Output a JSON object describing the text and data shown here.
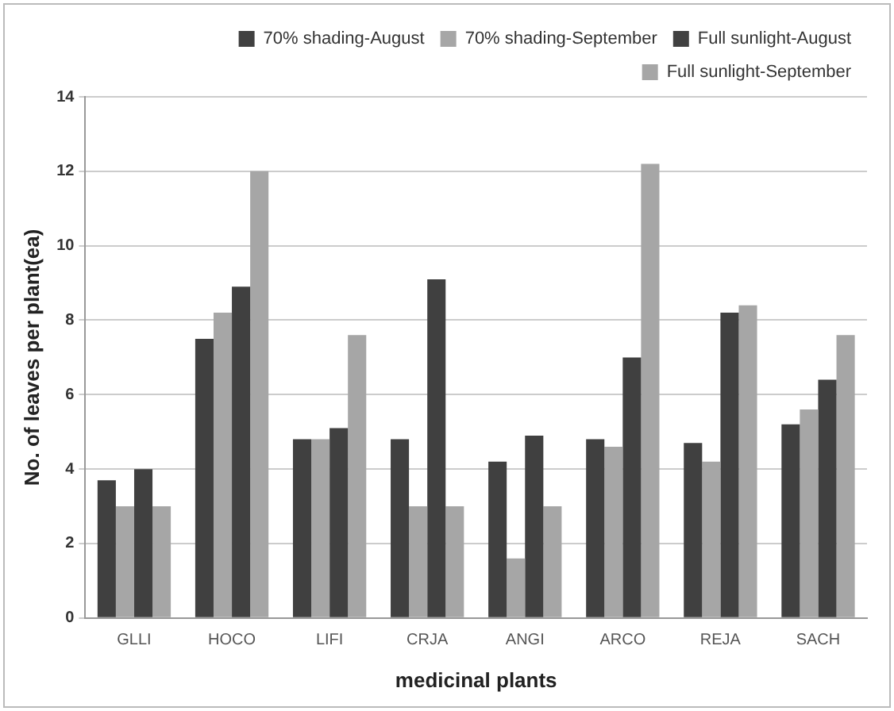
{
  "chart_data": {
    "type": "bar",
    "xlabel": "medicinal plants",
    "ylabel": "No. of leaves per plant(ea)",
    "categories": [
      "GLLI",
      "HOCO",
      "LIFI",
      "CRJA",
      "ANGI",
      "ARCO",
      "REJA",
      "SACH"
    ],
    "series": [
      {
        "name": "70% shading-August",
        "color": "#404040",
        "values": [
          3.7,
          7.5,
          4.8,
          4.8,
          4.2,
          4.8,
          4.7,
          5.2
        ]
      },
      {
        "name": "70% shading-September",
        "color": "#a6a6a6",
        "values": [
          3.0,
          8.2,
          4.8,
          3.0,
          1.6,
          4.6,
          4.2,
          5.6
        ]
      },
      {
        "name": "Full sunlight-August",
        "color": "#404040",
        "values": [
          4.0,
          8.9,
          5.1,
          9.1,
          4.9,
          7.0,
          8.2,
          6.4
        ]
      },
      {
        "name": "Full sunlight-September",
        "color": "#a6a6a6",
        "values": [
          3.0,
          12.0,
          7.6,
          3.0,
          3.0,
          12.2,
          8.4,
          7.6
        ]
      }
    ],
    "ylim": [
      0,
      14
    ],
    "yticks": [
      0,
      2,
      4,
      6,
      8,
      10,
      12,
      14
    ],
    "grid": "y",
    "legend": "top"
  }
}
